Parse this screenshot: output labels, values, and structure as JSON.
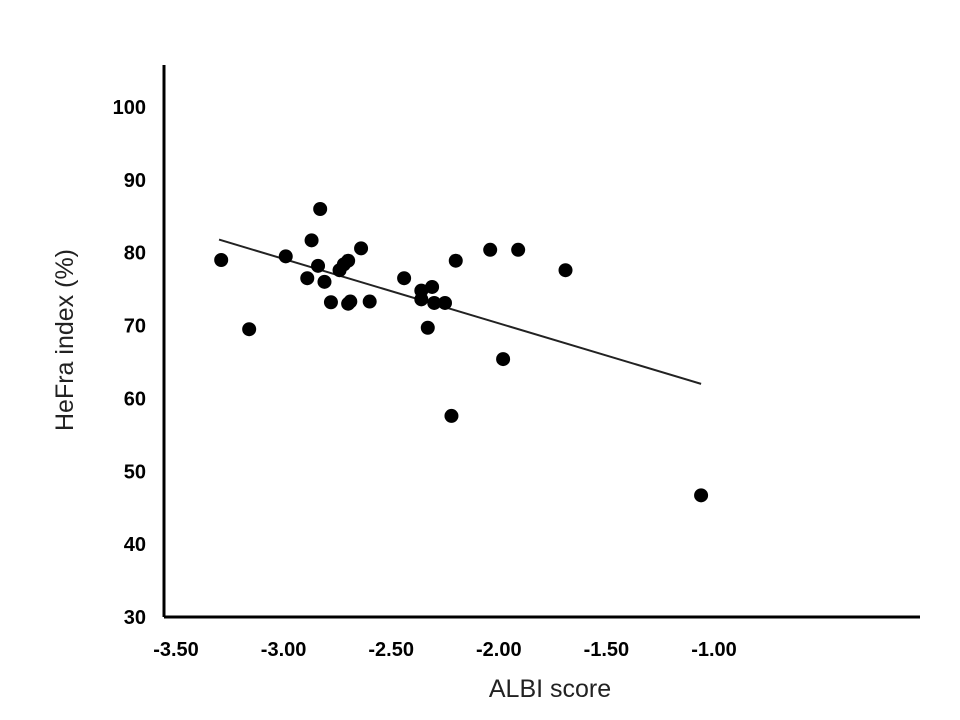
{
  "chart_data": {
    "type": "scatter",
    "title": "",
    "xlabel": "ALBI score",
    "ylabel": "HeFra index (%)",
    "xlim": [
      -3.55,
      -0.0
    ],
    "ylim": [
      30,
      105
    ],
    "xticks": [
      "-3.50",
      "-3.00",
      "-2.50",
      "-2.00",
      "-1.50",
      "-1.00"
    ],
    "xtick_values": [
      -3.5,
      -3.0,
      -2.5,
      -2.0,
      -1.5,
      -1.0
    ],
    "yticks": [
      "30",
      "40",
      "50",
      "60",
      "70",
      "80",
      "90",
      "100"
    ],
    "ytick_values": [
      30,
      40,
      50,
      60,
      70,
      80,
      90,
      100
    ],
    "grid": false,
    "series": [
      {
        "values": [
          [
            -3.29,
            79.0
          ],
          [
            -3.16,
            69.5
          ],
          [
            -2.99,
            79.5
          ],
          [
            -2.89,
            76.5
          ],
          [
            -2.87,
            81.7
          ],
          [
            -2.84,
            78.2
          ],
          [
            -2.83,
            86.0
          ],
          [
            -2.81,
            76.0
          ],
          [
            -2.78,
            73.2
          ],
          [
            -2.74,
            77.6
          ],
          [
            -2.72,
            78.4
          ],
          [
            -2.7,
            73.0
          ],
          [
            -2.7,
            78.9
          ],
          [
            -2.69,
            73.3
          ],
          [
            -2.64,
            80.6
          ],
          [
            -2.6,
            73.3
          ],
          [
            -2.44,
            76.5
          ],
          [
            -2.36,
            74.8
          ],
          [
            -2.36,
            73.6
          ],
          [
            -2.33,
            69.7
          ],
          [
            -2.31,
            75.3
          ],
          [
            -2.3,
            73.1
          ],
          [
            -2.25,
            73.1
          ],
          [
            -2.22,
            57.6
          ],
          [
            -2.2,
            78.9
          ],
          [
            -2.04,
            80.4
          ],
          [
            -1.98,
            65.4
          ],
          [
            -1.91,
            80.4
          ],
          [
            -1.69,
            77.6
          ],
          [
            -1.06,
            46.7
          ]
        ]
      }
    ],
    "trendline": {
      "x": [
        -3.3,
        -1.06
      ],
      "y": [
        81.8,
        62.0
      ]
    }
  }
}
